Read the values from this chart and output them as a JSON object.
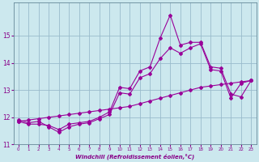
{
  "xlabel": "Windchill (Refroidissement éolien,°C)",
  "background_color": "#cce8ee",
  "line_color": "#990099",
  "grid_color": "#99bbcc",
  "xlim": [
    -0.5,
    23.5
  ],
  "ylim": [
    11.0,
    16.2
  ],
  "yticks": [
    11,
    12,
    13,
    14,
    15
  ],
  "xticks": [
    0,
    1,
    2,
    3,
    4,
    5,
    6,
    7,
    8,
    9,
    10,
    11,
    12,
    13,
    14,
    15,
    16,
    17,
    18,
    19,
    20,
    21,
    22,
    23
  ],
  "series1_x": [
    0,
    1,
    2,
    3,
    4,
    5,
    6,
    7,
    8,
    9,
    10,
    11,
    12,
    13,
    14,
    15,
    16,
    17,
    18,
    19,
    20,
    21,
    22,
    23
  ],
  "series1_y": [
    11.85,
    11.75,
    11.75,
    11.7,
    11.55,
    11.75,
    11.8,
    11.85,
    12.0,
    12.2,
    13.1,
    13.05,
    13.7,
    13.85,
    14.9,
    15.75,
    14.65,
    14.75,
    14.75,
    13.85,
    13.8,
    12.85,
    12.75,
    13.35
  ],
  "series2_x": [
    0,
    1,
    2,
    3,
    4,
    5,
    6,
    7,
    8,
    9,
    10,
    11,
    12,
    13,
    14,
    15,
    16,
    17,
    18,
    19,
    20,
    21,
    22,
    23
  ],
  "series2_y": [
    11.9,
    11.8,
    11.85,
    11.65,
    11.45,
    11.65,
    11.75,
    11.8,
    11.95,
    12.1,
    12.9,
    12.85,
    13.45,
    13.6,
    14.15,
    14.55,
    14.35,
    14.55,
    14.7,
    13.75,
    13.7,
    12.7,
    13.25,
    13.35
  ],
  "series3_x": [
    0,
    1,
    2,
    3,
    4,
    5,
    6,
    7,
    8,
    9,
    10,
    11,
    12,
    13,
    14,
    15,
    16,
    17,
    18,
    19,
    20,
    21,
    22,
    23
  ],
  "series3_y": [
    11.85,
    11.9,
    11.95,
    12.0,
    12.05,
    12.1,
    12.15,
    12.2,
    12.25,
    12.3,
    12.35,
    12.4,
    12.5,
    12.6,
    12.7,
    12.8,
    12.9,
    13.0,
    13.1,
    13.15,
    13.2,
    13.25,
    13.3,
    13.35
  ]
}
